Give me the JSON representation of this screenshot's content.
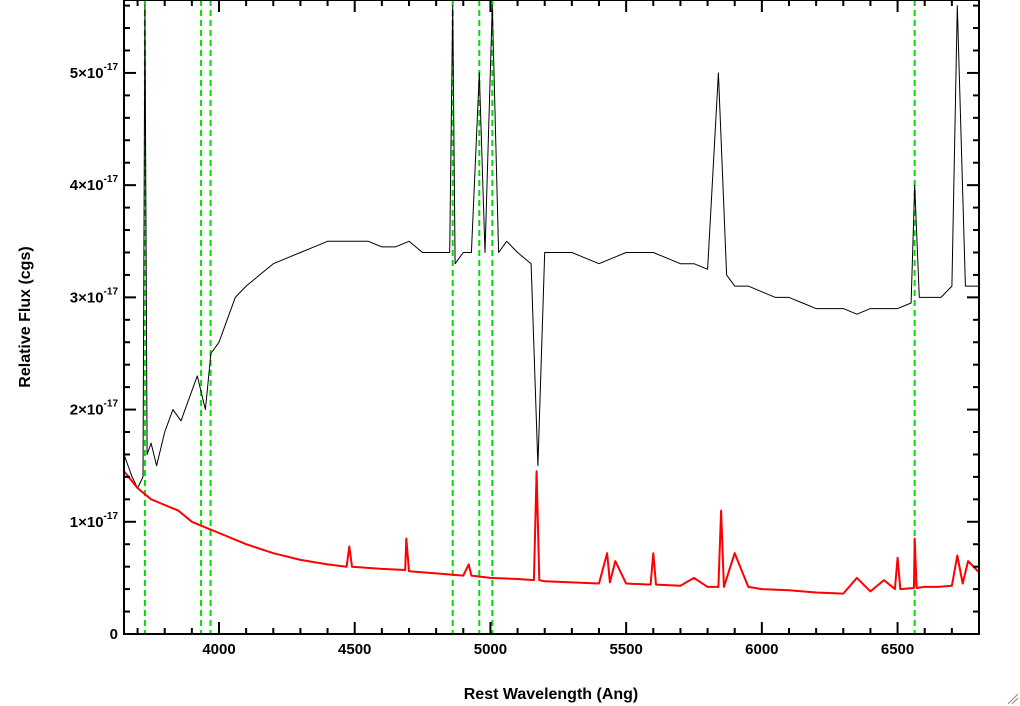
{
  "chart_data": {
    "type": "line",
    "xlabel": "Rest Wavelength (Ang)",
    "ylabel": "Relative Flux (cgs)",
    "xlim": [
      3650,
      6800
    ],
    "ylim": [
      0,
      5.65e-17
    ],
    "x_ticks": [
      4000,
      4500,
      5000,
      5500,
      6000,
      6500
    ],
    "x_tick_labels": [
      "4000",
      "4500",
      "5000",
      "5500",
      "6000",
      "6500"
    ],
    "y_ticks": [
      0,
      1e-17,
      2e-17,
      3e-17,
      4e-17,
      5e-17
    ],
    "y_tick_labels": [
      {
        "mantissa": "0",
        "exp": ""
      },
      {
        "mantissa": "1×10",
        "exp": "-17"
      },
      {
        "mantissa": "2×10",
        "exp": "-17"
      },
      {
        "mantissa": "3×10",
        "exp": "-17"
      },
      {
        "mantissa": "4×10",
        "exp": "-17"
      },
      {
        "mantissa": "5×10",
        "exp": "-17"
      }
    ],
    "grid": false,
    "series": [
      {
        "color": "#000000",
        "x": [
          3650,
          3680,
          3700,
          3720,
          3727,
          3735,
          3750,
          3770,
          3800,
          3830,
          3860,
          3890,
          3920,
          3950,
          3970,
          4000,
          4030,
          4060,
          4100,
          4150,
          4200,
          4250,
          4300,
          4350,
          4400,
          4450,
          4500,
          4550,
          4600,
          4650,
          4700,
          4750,
          4800,
          4850,
          4861,
          4870,
          4900,
          4930,
          4959,
          4980,
          5007,
          5030,
          5060,
          5100,
          5150,
          5175,
          5200,
          5250,
          5300,
          5350,
          5400,
          5450,
          5500,
          5550,
          5600,
          5650,
          5700,
          5750,
          5800,
          5840,
          5870,
          5900,
          5950,
          6000,
          6050,
          6100,
          6150,
          6200,
          6250,
          6300,
          6350,
          6400,
          6450,
          6500,
          6550,
          6563,
          6580,
          6620,
          6660,
          6700,
          6720,
          6750,
          6800
        ],
        "y": [
          1.6e-17,
          1.4e-17,
          1.3e-17,
          1.4e-17,
          5.6e-17,
          1.6e-17,
          1.7e-17,
          1.5e-17,
          1.8e-17,
          2e-17,
          1.9e-17,
          2.1e-17,
          2.3e-17,
          2e-17,
          2.5e-17,
          2.6e-17,
          2.8e-17,
          3e-17,
          3.1e-17,
          3.2e-17,
          3.3e-17,
          3.35e-17,
          3.4e-17,
          3.45e-17,
          3.5e-17,
          3.5e-17,
          3.5e-17,
          3.5e-17,
          3.45e-17,
          3.45e-17,
          3.5e-17,
          3.4e-17,
          3.4e-17,
          3.4e-17,
          5.6e-17,
          3.3e-17,
          3.4e-17,
          3.4e-17,
          5e-17,
          3.4e-17,
          5.6e-17,
          3.4e-17,
          3.5e-17,
          3.4e-17,
          3.3e-17,
          1.5e-17,
          3.4e-17,
          3.4e-17,
          3.4e-17,
          3.35e-17,
          3.3e-17,
          3.35e-17,
          3.4e-17,
          3.4e-17,
          3.4e-17,
          3.35e-17,
          3.3e-17,
          3.3e-17,
          3.25e-17,
          5e-17,
          3.2e-17,
          3.1e-17,
          3.1e-17,
          3.05e-17,
          3e-17,
          3e-17,
          2.95e-17,
          2.9e-17,
          2.9e-17,
          2.9e-17,
          2.85e-17,
          2.9e-17,
          2.9e-17,
          2.9e-17,
          2.95e-17,
          4e-17,
          3e-17,
          3e-17,
          3e-17,
          3.1e-17,
          5.6e-17,
          3.1e-17,
          3.1e-17
        ]
      },
      {
        "color": "#ff0000",
        "x": [
          3650,
          3700,
          3750,
          3800,
          3850,
          3900,
          3950,
          4000,
          4100,
          4200,
          4300,
          4400,
          4470,
          4480,
          4490,
          4600,
          4686,
          4690,
          4700,
          4800,
          4900,
          4920,
          4930,
          5000,
          5100,
          5160,
          5170,
          5180,
          5200,
          5300,
          5400,
          5430,
          5440,
          5460,
          5500,
          5590,
          5600,
          5610,
          5700,
          5750,
          5800,
          5840,
          5850,
          5860,
          5900,
          5950,
          6000,
          6100,
          6200,
          6300,
          6350,
          6400,
          6450,
          6490,
          6500,
          6510,
          6560,
          6563,
          6570,
          6600,
          6650,
          6700,
          6720,
          6740,
          6760,
          6800
        ],
        "y": [
          1.45e-17,
          1.3e-17,
          1.2e-17,
          1.15e-17,
          1.1e-17,
          1e-17,
          9.5e-18,
          9e-18,
          8e-18,
          7.2e-18,
          6.6e-18,
          6.2e-18,
          6e-18,
          7.8e-18,
          6e-18,
          5.8e-18,
          5.7e-18,
          8.5e-18,
          5.6e-18,
          5.4e-18,
          5.2e-18,
          6.2e-18,
          5.2e-18,
          5e-18,
          4.9e-18,
          4.8e-18,
          1.45e-17,
          4.8e-18,
          4.7e-18,
          4.6e-18,
          4.5e-18,
          7.2e-18,
          4.6e-18,
          6.5e-18,
          4.5e-18,
          4.4e-18,
          7.2e-18,
          4.4e-18,
          4.3e-18,
          5e-18,
          4.2e-18,
          4.2e-18,
          1.1e-17,
          4.2e-18,
          7.2e-18,
          4.2e-18,
          4e-18,
          3.9e-18,
          3.7e-18,
          3.6e-18,
          5e-18,
          3.8e-18,
          4.8e-18,
          4e-18,
          6.8e-18,
          4e-18,
          4.1e-18,
          8.5e-18,
          4.1e-18,
          4.2e-18,
          4.2e-18,
          4.3e-18,
          7e-18,
          4.5e-18,
          6.5e-18,
          5.5e-18
        ]
      }
    ],
    "vertical_lines": {
      "color": "#00dd00",
      "style": "dashed",
      "x": [
        3727,
        3934,
        3969,
        4861,
        4959,
        5007,
        6563
      ]
    }
  }
}
